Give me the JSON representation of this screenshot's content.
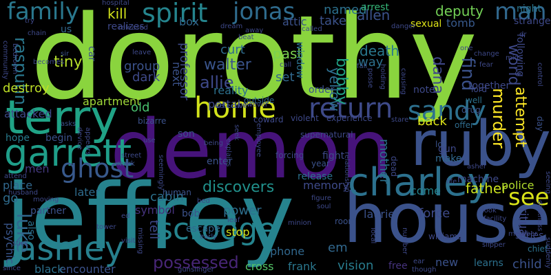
{
  "words": [
    {
      "text": "dorothy",
      "color": "#8ad43e"
    },
    {
      "text": "demon",
      "color": "#46137a"
    },
    {
      "text": "jeffrey",
      "color": "#26838e"
    },
    {
      "text": "house",
      "color": "#3b528b"
    },
    {
      "text": "terry",
      "color": "#20a386"
    },
    {
      "text": "ruby",
      "color": "#3b528b"
    },
    {
      "text": "garrett",
      "color": "#1f9e89"
    },
    {
      "text": "charley",
      "color": "#2c718e"
    },
    {
      "text": "scrooge",
      "color": "#25848e"
    },
    {
      "text": "ashley",
      "color": "#27808e"
    },
    {
      "text": "home",
      "color": "#d2e21b"
    },
    {
      "text": "return",
      "color": "#3e4a89"
    },
    {
      "text": "sandy",
      "color": "#2d708e"
    },
    {
      "text": "ghost",
      "color": "#38598c"
    },
    {
      "text": "family",
      "color": "#2a788e"
    },
    {
      "text": "spirit",
      "color": "#25858e"
    },
    {
      "text": "jonas",
      "color": "#2f6c8e"
    },
    {
      "text": "man",
      "color": "#31688e"
    },
    {
      "text": "see",
      "color": "#d8e219"
    },
    {
      "text": "discovers",
      "color": "#21918c"
    },
    {
      "text": "luke",
      "color": "#31688e"
    },
    {
      "text": "father",
      "color": "#cae11f"
    },
    {
      "text": "possessed",
      "color": "#482677"
    },
    {
      "text": "allie",
      "color": "#3e4989"
    },
    {
      "text": "walter",
      "color": "#3a548c"
    },
    {
      "text": "curt",
      "color": "#2f6c8e"
    },
    {
      "text": "death",
      "color": "#2a788e"
    },
    {
      "text": "dana",
      "color": "#3f4788"
    },
    {
      "text": "find",
      "color": "#3b528b"
    },
    {
      "text": "murder",
      "color": "#fde725"
    },
    {
      "text": "attempt",
      "color": "#fde725"
    },
    {
      "text": "world",
      "color": "#3e4989"
    },
    {
      "text": "bobby",
      "color": "#20a386"
    },
    {
      "text": "yellow",
      "color": "#2e6e8e"
    },
    {
      "text": "past",
      "color": "#7ad151"
    },
    {
      "text": "set",
      "color": "#31688e"
    },
    {
      "text": "way",
      "color": "#2d708e"
    },
    {
      "text": "allen",
      "color": "#3b528b"
    },
    {
      "text": "named",
      "color": "#2c718e"
    },
    {
      "text": "arrest",
      "color": "#35b779"
    },
    {
      "text": "take",
      "color": "#3b528b"
    },
    {
      "text": "kill",
      "color": "#d2e21b"
    },
    {
      "text": "deputy",
      "color": "#73d056"
    },
    {
      "text": "night",
      "color": "#2a778e"
    },
    {
      "text": "strange",
      "color": "#3e4989"
    },
    {
      "text": "tomb",
      "color": "#38598c"
    },
    {
      "text": "sexual",
      "color": "#dde318"
    },
    {
      "text": "rasputin",
      "color": "#2a788e"
    },
    {
      "text": "tiny",
      "color": "#b5de2b"
    },
    {
      "text": "destroy",
      "color": "#bddf26"
    },
    {
      "text": "attacked",
      "color": "#3e4a89"
    },
    {
      "text": "apartment",
      "color": "#a0da39"
    },
    {
      "text": "old",
      "color": "#48c16e"
    },
    {
      "text": "professor",
      "color": "#3e4989"
    },
    {
      "text": "hope",
      "color": "#287c8e"
    },
    {
      "text": "begin",
      "color": "#3b528b"
    },
    {
      "text": "men",
      "color": "#44397f"
    },
    {
      "text": "place",
      "color": "#31688e"
    },
    {
      "text": "later",
      "color": "#2f6c8e"
    },
    {
      "text": "cabin",
      "color": "#2c718e"
    },
    {
      "text": "memory",
      "color": "#3e4a89"
    },
    {
      "text": "police",
      "color": "#b2dd2d"
    },
    {
      "text": "force",
      "color": "#3e4a89"
    },
    {
      "text": "ritual",
      "color": "#3e4989"
    },
    {
      "text": "laurie",
      "color": "#3b528b"
    },
    {
      "text": "come",
      "color": "#25848e"
    },
    {
      "text": "mother",
      "color": "#2c718e"
    },
    {
      "text": "back",
      "color": "#dde318"
    },
    {
      "text": "machine",
      "color": "#3e4989"
    },
    {
      "text": "tell",
      "color": "#3e4a89"
    },
    {
      "text": "symbol",
      "color": "#46337e"
    },
    {
      "text": "bob",
      "color": "#3b528b"
    },
    {
      "text": "power",
      "color": "#2e6f8e"
    },
    {
      "text": "stop",
      "color": "#d2e21b"
    },
    {
      "text": "em",
      "color": "#31688e"
    },
    {
      "text": "phone",
      "color": "#31688e"
    },
    {
      "text": "frank",
      "color": "#2a778e"
    },
    {
      "text": "vision",
      "color": "#287c8e"
    },
    {
      "text": "free",
      "color": "#46337e"
    },
    {
      "text": "new",
      "color": "#3b528b"
    },
    {
      "text": "learns",
      "color": "#2c718e"
    },
    {
      "text": "child",
      "color": "#3b528b"
    },
    {
      "text": "cross",
      "color": "#54c568"
    },
    {
      "text": "encounter",
      "color": "#3b528b"
    },
    {
      "text": "black",
      "color": "#2c718e"
    },
    {
      "text": "psychic",
      "color": "#39568c"
    },
    {
      "text": "also",
      "color": "#2c718e"
    },
    {
      "text": "partner",
      "color": "#3b528b"
    },
    {
      "text": "go",
      "color": "#2f6c8e"
    },
    {
      "text": "group",
      "color": "#3b528b"
    },
    {
      "text": "dark",
      "color": "#3e4989"
    },
    {
      "text": "portal",
      "color": "#3e4989"
    },
    {
      "text": "reality",
      "color": "#2c718e"
    },
    {
      "text": "order",
      "color": "#3b528b"
    },
    {
      "text": "note",
      "color": "#3e4989"
    },
    {
      "text": "window",
      "color": "#2c718e"
    },
    {
      "text": "box",
      "color": "#31688e"
    },
    {
      "text": "attic",
      "color": "#3b528b"
    },
    {
      "text": "realizes",
      "color": "#3e4989"
    },
    {
      "text": "us",
      "color": "#31688e"
    },
    {
      "text": "next",
      "color": "#3b528b"
    },
    {
      "text": "son",
      "color": "#3b528b"
    },
    {
      "text": "car",
      "color": "#3b528b"
    },
    {
      "text": "following",
      "color": "#3e4989"
    },
    {
      "text": "together",
      "color": "#3e4989"
    },
    {
      "text": "lord",
      "color": "#3e4989"
    },
    {
      "text": "well",
      "color": "#2c718e"
    },
    {
      "text": "drug",
      "color": "#3b528b"
    },
    {
      "text": "offer",
      "color": "#2f6c8e"
    },
    {
      "text": "los",
      "color": "#3b528b"
    },
    {
      "text": "make",
      "color": "#31688e"
    },
    {
      "text": "gun",
      "color": "#3e4989"
    },
    {
      "text": "enter",
      "color": "#3b528b"
    },
    {
      "text": "release",
      "color": "#2c718e"
    },
    {
      "text": "escape",
      "color": "#31688e"
    },
    {
      "text": "human",
      "color": "#3b528b"
    },
    {
      "text": "fight",
      "color": "#3e4989"
    },
    {
      "text": "year",
      "color": "#3b528b"
    },
    {
      "text": "coward",
      "color": "#3e4989"
    },
    {
      "text": "violent",
      "color": "#3e4989"
    },
    {
      "text": "experience",
      "color": "#3e4989"
    },
    {
      "text": "bizarre",
      "color": "#3b528b"
    },
    {
      "text": "outside",
      "color": "#31688e"
    },
    {
      "text": "however",
      "color": "#3e4989"
    },
    {
      "text": "detective",
      "color": "#3b528b"
    },
    {
      "text": "employee",
      "color": "#3e4989"
    },
    {
      "text": "forcing",
      "color": "#3e4989"
    },
    {
      "text": "supernatural",
      "color": "#3e4989"
    },
    {
      "text": "relationship",
      "color": "#3e4989"
    },
    {
      "text": "dead",
      "color": "#3e4989"
    },
    {
      "text": "room",
      "color": "#3b528b"
    },
    {
      "text": "minion",
      "color": "#3e4989"
    },
    {
      "text": "series",
      "color": "#3e4989"
    },
    {
      "text": "member",
      "color": "#3e4989"
    },
    {
      "text": "chief",
      "color": "#2c718e"
    },
    {
      "text": "suddenly",
      "color": "#3e4989"
    },
    {
      "text": "day",
      "color": "#3b528b"
    },
    {
      "text": "slipper",
      "color": "#3e4989"
    },
    {
      "text": "williams",
      "color": "#3e4989"
    },
    {
      "text": "local",
      "color": "#3e4989"
    },
    {
      "text": "number",
      "color": "#3e4989"
    },
    {
      "text": "attend",
      "color": "#3e4989"
    },
    {
      "text": "husband",
      "color": "#3e4989"
    },
    {
      "text": "moving",
      "color": "#3e4989"
    },
    {
      "text": "community",
      "color": "#3e4989"
    },
    {
      "text": "bedroom",
      "color": "#3e4989"
    },
    {
      "text": "becomes",
      "color": "#3e4989"
    },
    {
      "text": "sir",
      "color": "#3b528b"
    },
    {
      "text": "try",
      "color": "#3e4989"
    },
    {
      "text": "asks",
      "color": "#3b528b"
    },
    {
      "text": "device",
      "color": "#3e4989"
    },
    {
      "text": "appears",
      "color": "#3e4989"
    },
    {
      "text": "leave",
      "color": "#3e4989"
    },
    {
      "text": "mark",
      "color": "#3b528b"
    },
    {
      "text": "street",
      "color": "#3e4989"
    },
    {
      "text": "use",
      "color": "#3e4989"
    },
    {
      "text": "seemingly",
      "color": "#3e4989"
    },
    {
      "text": "being",
      "color": "#3e4989"
    },
    {
      "text": "explains",
      "color": "#3e4989"
    },
    {
      "text": "seek",
      "color": "#3e4989"
    },
    {
      "text": "call",
      "color": "#3e4989"
    },
    {
      "text": "fall",
      "color": "#3b528b"
    },
    {
      "text": "posse",
      "color": "#3e4989"
    },
    {
      "text": "holding",
      "color": "#3e4989"
    },
    {
      "text": "causing",
      "color": "#3e4989"
    },
    {
      "text": "stare",
      "color": "#3e4989"
    },
    {
      "text": "control",
      "color": "#3e4989"
    },
    {
      "text": "dr",
      "color": "#3e4989"
    },
    {
      "text": "mid",
      "color": "#3e4989"
    },
    {
      "text": "one",
      "color": "#3e4989"
    },
    {
      "text": "change",
      "color": "#3e4989"
    },
    {
      "text": "fear",
      "color": "#3e4989"
    },
    {
      "text": "dream",
      "color": "#3e4989"
    },
    {
      "text": "beat",
      "color": "#3e4989"
    },
    {
      "text": "away",
      "color": "#3e4989"
    },
    {
      "text": "released",
      "color": "#3e4989"
    },
    {
      "text": "hospital",
      "color": "#3e4989"
    },
    {
      "text": "chain",
      "color": "#3e4989"
    },
    {
      "text": "called",
      "color": "#3e4989"
    },
    {
      "text": "danger",
      "color": "#3e4989"
    },
    {
      "text": "life",
      "color": "#3e4989"
    },
    {
      "text": "look",
      "color": "#3e4989"
    },
    {
      "text": "facility",
      "color": "#3e4989"
    },
    {
      "text": "darkness",
      "color": "#3e4989"
    },
    {
      "text": "seeing",
      "color": "#3e4989"
    },
    {
      "text": "asher",
      "color": "#3e4989"
    },
    {
      "text": "figure",
      "color": "#3e4989"
    },
    {
      "text": "soul",
      "color": "#3e4989"
    },
    {
      "text": "bed",
      "color": "#3e4989"
    },
    {
      "text": "ed",
      "color": "#3e4989"
    },
    {
      "text": "leaf",
      "color": "#3e4989"
    },
    {
      "text": "early",
      "color": "#3b528b"
    },
    {
      "text": "visit",
      "color": "#3e4989"
    },
    {
      "text": "missing",
      "color": "#3e4989"
    },
    {
      "text": "tower",
      "color": "#3e4989"
    },
    {
      "text": "stick",
      "color": "#3e4989"
    },
    {
      "text": "since",
      "color": "#3e4989"
    },
    {
      "text": "gunslinger",
      "color": "#3e4989"
    },
    {
      "text": "ear",
      "color": "#3e4989"
    },
    {
      "text": "though",
      "color": "#3e4989"
    }
  ]
}
